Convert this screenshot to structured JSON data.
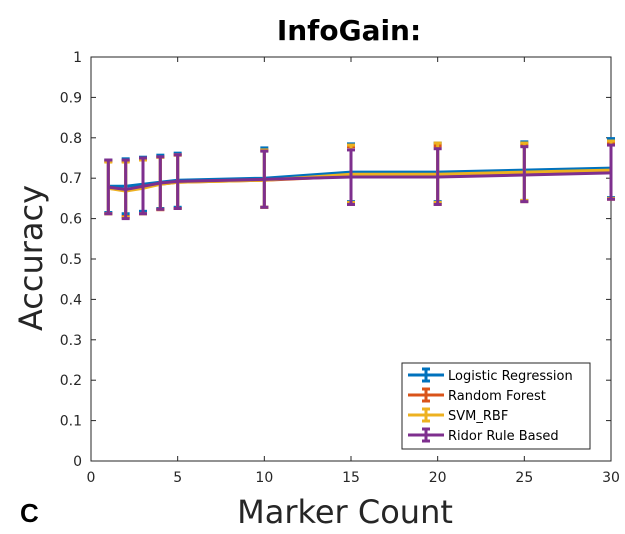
{
  "panel_letter": "C",
  "chart_data": {
    "type": "line",
    "title": "InfoGain:",
    "xlabel": "Marker Count",
    "ylabel": "Accuracy",
    "xlim": [
      0,
      30
    ],
    "ylim": [
      0,
      1
    ],
    "xticks": [
      0,
      5,
      10,
      15,
      20,
      25,
      30
    ],
    "yticks": [
      0,
      0.1,
      0.2,
      0.3,
      0.4,
      0.5,
      0.6,
      0.7,
      0.8,
      0.9,
      1
    ],
    "grid": false,
    "legend_position": "bottom-right",
    "error_bars": true,
    "x": [
      1,
      2,
      3,
      4,
      5,
      10,
      15,
      20,
      25,
      30
    ],
    "series": [
      {
        "name": "Logistic Regression",
        "color": "#0072BD",
        "values": [
          0.68,
          0.68,
          0.685,
          0.69,
          0.695,
          0.7,
          0.715,
          0.715,
          0.72,
          0.725
        ],
        "upper": [
          0.745,
          0.748,
          0.752,
          0.757,
          0.762,
          0.775,
          0.785,
          0.787,
          0.79,
          0.798
        ],
        "lower": [
          0.615,
          0.612,
          0.618,
          0.625,
          0.628,
          0.628,
          0.642,
          0.642,
          0.645,
          0.652
        ]
      },
      {
        "name": "Random Forest",
        "color": "#D95319",
        "values": [
          0.675,
          0.67,
          0.68,
          0.685,
          0.69,
          0.695,
          0.705,
          0.705,
          0.71,
          0.715
        ],
        "upper": [
          0.742,
          0.742,
          0.748,
          0.752,
          0.757,
          0.768,
          0.778,
          0.78,
          0.782,
          0.788
        ],
        "lower": [
          0.612,
          0.605,
          0.612,
          0.622,
          0.625,
          0.628,
          0.635,
          0.635,
          0.642,
          0.648
        ]
      },
      {
        "name": "SVM_RBF",
        "color": "#EDB120",
        "values": [
          0.675,
          0.668,
          0.675,
          0.685,
          0.69,
          0.695,
          0.71,
          0.71,
          0.715,
          0.72
        ],
        "upper": [
          0.74,
          0.74,
          0.745,
          0.752,
          0.758,
          0.77,
          0.782,
          0.787,
          0.787,
          0.792
        ],
        "lower": [
          0.612,
          0.603,
          0.612,
          0.623,
          0.625,
          0.628,
          0.64,
          0.64,
          0.645,
          0.65
        ]
      },
      {
        "name": "Ridor Rule Based",
        "color": "#7E2F8E",
        "values": [
          0.678,
          0.672,
          0.68,
          0.688,
          0.692,
          0.697,
          0.703,
          0.703,
          0.708,
          0.713
        ],
        "upper": [
          0.745,
          0.745,
          0.75,
          0.753,
          0.758,
          0.767,
          0.77,
          0.773,
          0.778,
          0.782
        ],
        "lower": [
          0.612,
          0.6,
          0.612,
          0.623,
          0.625,
          0.628,
          0.635,
          0.635,
          0.642,
          0.648
        ]
      }
    ]
  }
}
